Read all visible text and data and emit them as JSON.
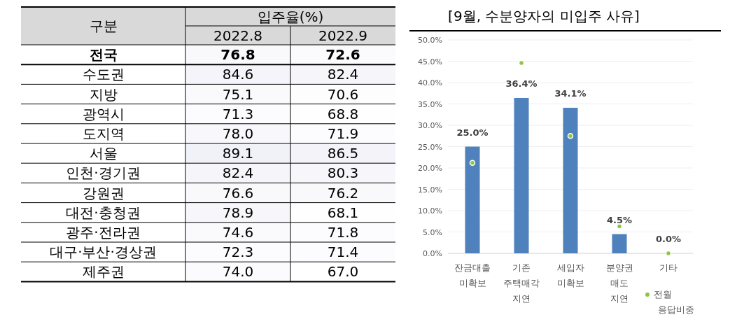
{
  "chart_data": [
    {
      "type": "heatmap",
      "title": "입주율(%)",
      "ylabel": "구분",
      "categories": [
        "2022.8",
        "2022.9"
      ],
      "y_categories": [
        "전국",
        "수도권",
        "지방",
        "광역시",
        "도지역",
        "서울",
        "인천·경기권",
        "강원권",
        "대전·충청권",
        "광주·전라권",
        "대구·부산·경상권",
        "제주권"
      ],
      "cells": [
        [
          76.8,
          72.6
        ],
        [
          84.6,
          82.4
        ],
        [
          75.1,
          70.6
        ],
        [
          71.3,
          68.8
        ],
        [
          78.0,
          71.9
        ],
        [
          89.1,
          86.5
        ],
        [
          82.4,
          80.3
        ],
        [
          76.6,
          76.2
        ],
        [
          78.9,
          68.1
        ],
        [
          74.6,
          71.8
        ],
        [
          72.3,
          71.4
        ],
        [
          74.0,
          67.0
        ]
      ],
      "cell_labels": [
        [
          "76.8",
          "72.6"
        ],
        [
          "84.6",
          "82.4"
        ],
        [
          "75.1",
          "70.6"
        ],
        [
          "71.3",
          "68.8"
        ],
        [
          "78.0",
          "71.9"
        ],
        [
          "89.1",
          "86.5"
        ],
        [
          "82.4",
          "80.3"
        ],
        [
          "76.6",
          "76.2"
        ],
        [
          "78.9",
          "68.1"
        ],
        [
          "74.6",
          "71.8"
        ],
        [
          "72.3",
          "71.4"
        ],
        [
          "74.0",
          "67.0"
        ]
      ],
      "grid": true
    },
    {
      "type": "bar",
      "title": "[9월, 수분양자의 미입주 사유]",
      "categories": [
        "잔금대출 미확보",
        "기존 주택매각 지연",
        "세입자 미확보",
        "분양권 매도 지연",
        "기타"
      ],
      "series": [
        {
          "color": "#4f81bd",
          "values": [
            25.0,
            36.4,
            34.1,
            4.5,
            0.0
          ],
          "value_labels": [
            "25.0%",
            "36.4%",
            "34.1%",
            "4.5%",
            "0.0%"
          ]
        },
        {
          "type": "scatter",
          "name": "전월 응답비중",
          "color": "#8dc63f",
          "values": [
            21.2,
            44.6,
            27.5,
            6.3,
            0.0
          ]
        }
      ],
      "ylim": [
        0,
        50
      ],
      "yticks": [
        {
          "value": 0,
          "label": "0.0%"
        },
        {
          "value": 5,
          "label": "5.0%"
        },
        {
          "value": 10,
          "label": "10.0%"
        },
        {
          "value": 15,
          "label": "15.0%"
        },
        {
          "value": 20,
          "label": "20.0%"
        },
        {
          "value": 25,
          "label": "25.0%"
        },
        {
          "value": 30,
          "label": "30.0%"
        },
        {
          "value": 35,
          "label": "35.0%"
        },
        {
          "value": 40,
          "label": "40.0%"
        },
        {
          "value": 45,
          "label": "45.0%"
        },
        {
          "value": 50,
          "label": "50.0%"
        }
      ],
      "grid": "y",
      "legend": "bottom right",
      "marker": "circle"
    }
  ]
}
